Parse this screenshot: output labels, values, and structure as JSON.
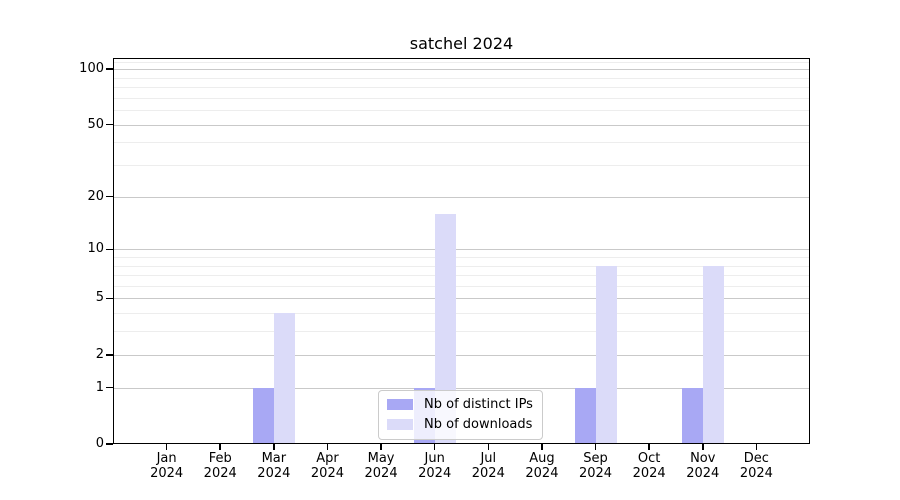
{
  "chart_data": {
    "type": "bar",
    "title": "satchel 2024",
    "xlabel": "",
    "ylabel": "",
    "categories": [
      "Jan",
      "Feb",
      "Mar",
      "Apr",
      "May",
      "Jun",
      "Jul",
      "Aug",
      "Sep",
      "Oct",
      "Nov",
      "Dec"
    ],
    "year_label": "2024",
    "series": [
      {
        "name": "Nb of distinct IPs",
        "color": "#a8a8f4",
        "values": [
          0,
          0,
          1,
          0,
          0,
          1,
          0,
          0,
          1,
          0,
          1,
          0
        ]
      },
      {
        "name": "Nb of downloads",
        "color": "#dbdbf9",
        "values": [
          0,
          0,
          4,
          0,
          0,
          16,
          0,
          0,
          8,
          0,
          8,
          0
        ]
      }
    ],
    "y_axis": {
      "scale": "log1p",
      "ticks": [
        0,
        1,
        2,
        5,
        10,
        20,
        50,
        100
      ],
      "minor_gridlines": [
        3,
        4,
        6,
        7,
        8,
        9,
        30,
        40,
        60,
        70,
        80,
        90,
        110
      ],
      "range": [
        0,
        116
      ]
    },
    "grid": true,
    "legend_position": "lower center"
  }
}
